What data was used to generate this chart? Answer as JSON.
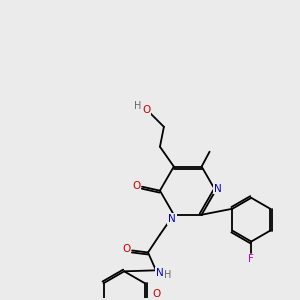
{
  "background_color": "#ebebeb",
  "bond_color": "#000000",
  "atom_colors": {
    "N": "#0000cc",
    "O": "#cc0000",
    "F": "#cc00cc",
    "H": "#666666",
    "C": "#000000"
  },
  "lw": 1.3,
  "fontsize": 7.5
}
